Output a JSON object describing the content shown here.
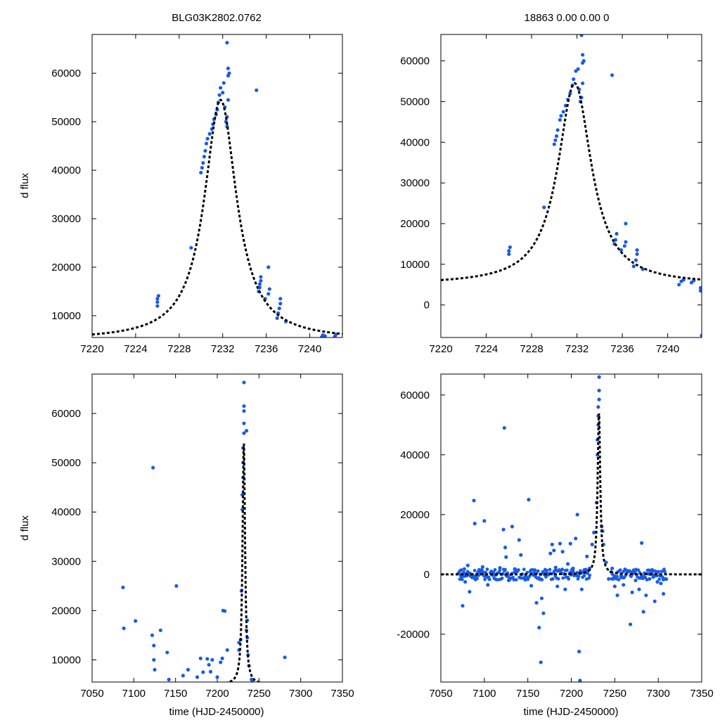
{
  "figure": {
    "colors": {
      "data_point": "#1a5ce6",
      "fit_line": "#000000",
      "frame": "#000000"
    }
  },
  "chart_data": [
    {
      "type": "scatter",
      "panel": "top-left",
      "title": "BLG03K2802.0762",
      "xlabel": "",
      "ylabel": "d flux",
      "xlim": [
        7220,
        7243
      ],
      "ylim": [
        5500,
        68000
      ],
      "xticks": [
        7220,
        7224,
        7228,
        7232,
        7236,
        7240
      ],
      "yticks": [
        10000,
        20000,
        30000,
        40000,
        50000,
        60000
      ],
      "model": {
        "t0": 7231.8,
        "fmax": 54500,
        "base": 5000,
        "width": 1.8
      },
      "points": [
        [
          7226.0,
          12000
        ],
        [
          7226.0,
          12800
        ],
        [
          7226.0,
          13500
        ],
        [
          7226.1,
          14100
        ],
        [
          7229.1,
          24000
        ],
        [
          7230.0,
          39500
        ],
        [
          7230.1,
          40500
        ],
        [
          7230.2,
          41500
        ],
        [
          7230.3,
          42800
        ],
        [
          7230.4,
          44000
        ],
        [
          7230.5,
          45500
        ],
        [
          7230.6,
          46500
        ],
        [
          7230.8,
          47500
        ],
        [
          7231.0,
          48500
        ],
        [
          7231.1,
          49500
        ],
        [
          7231.2,
          50500
        ],
        [
          7231.4,
          51500
        ],
        [
          7231.5,
          52500
        ],
        [
          7231.6,
          54000
        ],
        [
          7231.7,
          55500
        ],
        [
          7231.8,
          57000
        ],
        [
          7232.0,
          56000
        ],
        [
          7232.1,
          58000
        ],
        [
          7232.2,
          53000
        ],
        [
          7232.3,
          50000
        ],
        [
          7232.4,
          49000
        ],
        [
          7232.4,
          51000
        ],
        [
          7232.5,
          54500
        ],
        [
          7232.5,
          59500
        ],
        [
          7232.5,
          61000
        ],
        [
          7232.6,
          60000
        ],
        [
          7232.4,
          66300
        ],
        [
          7235.1,
          56500
        ],
        [
          7235.3,
          15000
        ],
        [
          7235.4,
          15800
        ],
        [
          7235.4,
          16500
        ],
        [
          7235.5,
          17200
        ],
        [
          7235.5,
          18000
        ],
        [
          7235.9,
          13500
        ],
        [
          7236.2,
          14500
        ],
        [
          7236.3,
          15500
        ],
        [
          7236.2,
          20000
        ],
        [
          7237.0,
          9500
        ],
        [
          7237.1,
          10500
        ],
        [
          7237.2,
          11500
        ],
        [
          7237.3,
          12500
        ],
        [
          7237.3,
          13500
        ],
        [
          7237.8,
          8800
        ],
        [
          7241.1,
          5600
        ],
        [
          7241.2,
          6000
        ],
        [
          7241.4,
          5800
        ],
        [
          7242.3,
          5700
        ],
        [
          7242.4,
          6100
        ]
      ]
    },
    {
      "type": "scatter",
      "panel": "top-right",
      "title": "18863  0.00  0.00  0",
      "xlabel": "",
      "ylabel": "",
      "xlim": [
        7220,
        7243
      ],
      "ylim": [
        -8000,
        66500
      ],
      "xticks": [
        7220,
        7224,
        7228,
        7232,
        7236,
        7240
      ],
      "yticks": [
        0,
        10000,
        20000,
        30000,
        40000,
        50000,
        60000
      ],
      "model": {
        "t0": 7231.8,
        "fmax": 54500,
        "base": 5000,
        "width": 1.8
      },
      "points": [
        [
          7226.0,
          12500
        ],
        [
          7226.0,
          13300
        ],
        [
          7226.1,
          14200
        ],
        [
          7229.1,
          24000
        ],
        [
          7230.0,
          39500
        ],
        [
          7230.1,
          40500
        ],
        [
          7230.2,
          41500
        ],
        [
          7230.3,
          43000
        ],
        [
          7230.5,
          45500
        ],
        [
          7230.6,
          46500
        ],
        [
          7230.8,
          47500
        ],
        [
          7231.0,
          49000
        ],
        [
          7231.2,
          50500
        ],
        [
          7231.4,
          52000
        ],
        [
          7231.6,
          54000
        ],
        [
          7231.7,
          55500
        ],
        [
          7231.9,
          57500
        ],
        [
          7232.1,
          58000
        ],
        [
          7232.2,
          53000
        ],
        [
          7232.3,
          50000
        ],
        [
          7232.4,
          51000
        ],
        [
          7232.5,
          54500
        ],
        [
          7232.5,
          59500
        ],
        [
          7232.5,
          61500
        ],
        [
          7232.6,
          60000
        ],
        [
          7232.4,
          66300
        ],
        [
          7235.1,
          56500
        ],
        [
          7235.3,
          15000
        ],
        [
          7235.4,
          16000
        ],
        [
          7235.5,
          17500
        ],
        [
          7235.9,
          13500
        ],
        [
          7236.2,
          14500
        ],
        [
          7236.3,
          15500
        ],
        [
          7236.3,
          20000
        ],
        [
          7237.0,
          9500
        ],
        [
          7237.2,
          11000
        ],
        [
          7237.3,
          12500
        ],
        [
          7237.3,
          13500
        ],
        [
          7237.8,
          8800
        ],
        [
          7241.0,
          5000
        ],
        [
          7241.2,
          5800
        ],
        [
          7241.4,
          6200
        ],
        [
          7242.1,
          5500
        ],
        [
          7242.3,
          6000
        ],
        [
          7242.9,
          4200
        ],
        [
          7242.9,
          3500
        ],
        [
          7243.0,
          -7500
        ]
      ]
    },
    {
      "type": "scatter",
      "panel": "bottom-left",
      "title": "",
      "xlabel": "time (HJD-2450000)",
      "ylabel": "d flux",
      "xlim": [
        7050,
        7350
      ],
      "ylim": [
        5500,
        68000
      ],
      "xticks": [
        7050,
        7100,
        7150,
        7200,
        7250,
        7300,
        7350
      ],
      "yticks": [
        10000,
        20000,
        30000,
        40000,
        50000,
        60000
      ],
      "model": {
        "t0": 7231.8,
        "fmax": 54500,
        "base": 5000,
        "width": 1.8
      },
      "points": [
        [
          7087,
          24700
        ],
        [
          7088,
          16400
        ],
        [
          7102,
          17900
        ],
        [
          7123,
          49000
        ],
        [
          7122,
          15000
        ],
        [
          7124,
          12900
        ],
        [
          7124,
          10000
        ],
        [
          7125,
          8000
        ],
        [
          7132,
          16000
        ],
        [
          7140,
          11500
        ],
        [
          7142,
          6000
        ],
        [
          7151,
          25000
        ],
        [
          7159,
          6800
        ],
        [
          7165,
          8000
        ],
        [
          7176,
          6500
        ],
        [
          7180,
          10300
        ],
        [
          7183,
          7500
        ],
        [
          7188,
          10200
        ],
        [
          7190,
          9000
        ],
        [
          7192,
          7600
        ],
        [
          7194,
          10000
        ],
        [
          7200,
          6500
        ],
        [
          7204,
          9500
        ],
        [
          7206,
          10300
        ],
        [
          7207,
          20000
        ],
        [
          7209,
          19900
        ],
        [
          7212,
          12000
        ],
        [
          7226,
          12000
        ],
        [
          7226,
          13500
        ],
        [
          7228,
          14100
        ],
        [
          7229,
          24000
        ],
        [
          7230,
          40500
        ],
        [
          7230,
          43500
        ],
        [
          7231,
          47000
        ],
        [
          7231,
          50000
        ],
        [
          7231,
          53000
        ],
        [
          7232,
          56000
        ],
        [
          7232,
          58000
        ],
        [
          7232,
          60500
        ],
        [
          7232,
          61500
        ],
        [
          7232,
          66300
        ],
        [
          7235,
          56500
        ],
        [
          7235,
          16000
        ],
        [
          7236,
          14500
        ],
        [
          7236,
          18000
        ],
        [
          7237,
          11000
        ],
        [
          7238,
          8800
        ],
        [
          7241,
          6000
        ],
        [
          7242,
          5800
        ],
        [
          7281,
          10500
        ]
      ]
    },
    {
      "type": "scatter",
      "panel": "bottom-right",
      "title": "",
      "xlabel": "time (HJD-2450000)",
      "ylabel": "",
      "xlim": [
        7050,
        7350
      ],
      "ylim": [
        -36000,
        67000
      ],
      "xticks": [
        7050,
        7100,
        7150,
        7200,
        7250,
        7300,
        7350
      ],
      "yticks": [
        -20000,
        0,
        20000,
        40000,
        60000
      ],
      "model": {
        "t0": 7231.8,
        "fmax": 54500,
        "base": 0,
        "width": 1.8
      },
      "points": [
        [
          7072,
          1200
        ],
        [
          7074,
          -800
        ],
        [
          7075,
          -10500
        ],
        [
          7077,
          1800
        ],
        [
          7078,
          -2500
        ],
        [
          7081,
          3000
        ],
        [
          7083,
          -5800
        ],
        [
          7086,
          -1000
        ],
        [
          7088,
          24700
        ],
        [
          7089,
          17000
        ],
        [
          7094,
          1500
        ],
        [
          7098,
          2500
        ],
        [
          7100,
          17900
        ],
        [
          7104,
          -3500
        ],
        [
          7108,
          1000
        ],
        [
          7113,
          -200
        ],
        [
          7118,
          2200
        ],
        [
          7122,
          15000
        ],
        [
          7123,
          49000
        ],
        [
          7124,
          9000
        ],
        [
          7125,
          5800
        ],
        [
          7128,
          -2000
        ],
        [
          7132,
          16000
        ],
        [
          7135,
          1800
        ],
        [
          7140,
          11500
        ],
        [
          7142,
          6500
        ],
        [
          7147,
          -1800
        ],
        [
          7151,
          25000
        ],
        [
          7154,
          -3800
        ],
        [
          7158,
          500
        ],
        [
          7160,
          -9500
        ],
        [
          7163,
          -17800
        ],
        [
          7165,
          -29400
        ],
        [
          7166,
          -8000
        ],
        [
          7168,
          -13000
        ],
        [
          7171,
          600
        ],
        [
          7176,
          7000
        ],
        [
          7178,
          10000
        ],
        [
          7180,
          8000
        ],
        [
          7182,
          2300
        ],
        [
          7184,
          -4000
        ],
        [
          7187,
          10300
        ],
        [
          7190,
          7600
        ],
        [
          7193,
          -5000
        ],
        [
          7196,
          3500
        ],
        [
          7199,
          10300
        ],
        [
          7202,
          2000
        ],
        [
          7205,
          12000
        ],
        [
          7207,
          20000
        ],
        [
          7209,
          -25800
        ],
        [
          7210,
          -35500
        ],
        [
          7212,
          -5000
        ],
        [
          7215,
          1500
        ],
        [
          7218,
          6000
        ],
        [
          7221,
          2000
        ],
        [
          7224,
          10000
        ],
        [
          7226,
          14000
        ],
        [
          7229,
          24000
        ],
        [
          7230,
          40000
        ],
        [
          7230,
          45000
        ],
        [
          7231,
          50000
        ],
        [
          7231,
          53000
        ],
        [
          7231,
          56000
        ],
        [
          7232,
          58500
        ],
        [
          7232,
          61500
        ],
        [
          7232,
          66000
        ],
        [
          7235,
          16000
        ],
        [
          7236,
          14500
        ],
        [
          7237,
          10000
        ],
        [
          7240,
          4000
        ],
        [
          7243,
          -1500
        ],
        [
          7247,
          2000
        ],
        [
          7250,
          -4000
        ],
        [
          7253,
          -7000
        ],
        [
          7257,
          -1000
        ],
        [
          7260,
          -3500
        ],
        [
          7264,
          1200
        ],
        [
          7268,
          -16700
        ],
        [
          7270,
          -6000
        ],
        [
          7274,
          -2000
        ],
        [
          7278,
          -5000
        ],
        [
          7281,
          10500
        ],
        [
          7283,
          -12500
        ],
        [
          7286,
          -7000
        ],
        [
          7290,
          -1500
        ],
        [
          7293,
          1500
        ],
        [
          7296,
          -9000
        ],
        [
          7299,
          -2500
        ],
        [
          7303,
          -3000
        ],
        [
          7306,
          -6500
        ],
        [
          7308,
          -1500
        ]
      ],
      "baseline_band": {
        "x_from": 7070,
        "x_to": 7310,
        "gap_from": 7222,
        "gap_to": 7245,
        "amplitude": 1800
      }
    }
  ]
}
